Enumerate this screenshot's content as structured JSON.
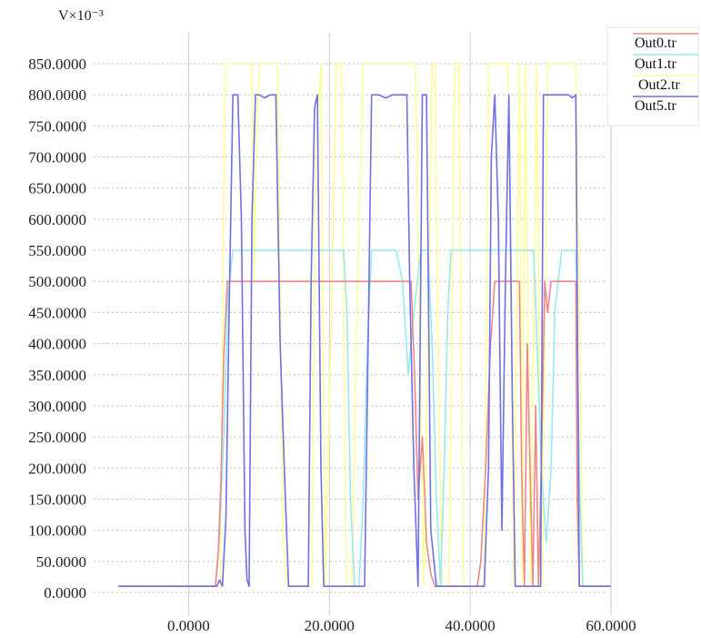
{
  "chart_data": {
    "type": "line",
    "title": "",
    "xlabel": "",
    "ylabel": "",
    "y_unit": "V×10⁻³",
    "xlim": [
      -10,
      60
    ],
    "ylim": [
      0,
      850
    ],
    "x_ticks": [
      0,
      20,
      40,
      60
    ],
    "x_tick_labels": [
      "0.0000",
      "20.0000",
      "40.0000",
      "60.0000"
    ],
    "y_ticks": [
      0,
      50,
      100,
      150,
      200,
      250,
      300,
      350,
      400,
      450,
      500,
      550,
      600,
      650,
      700,
      750,
      800,
      850
    ],
    "y_tick_labels": [
      "0.0000",
      "50.0000",
      "100.0000",
      "150.0000",
      "200.0000",
      "250.0000",
      "300.0000",
      "350.0000",
      "400.0000",
      "450.0000",
      "500.0000",
      "550.0000",
      "600.0000",
      "650.0000",
      "700.0000",
      "750.0000",
      "800.0000",
      "850.0000"
    ],
    "grid": {
      "horizontal": true,
      "vertical": true
    },
    "legend_position": "top-right",
    "series": [
      {
        "name": "Out0.tr",
        "color": "#ee8888",
        "x": [
          -10,
          3.8,
          4.2,
          4.6,
          5,
          5.5,
          6,
          6.5,
          7.2,
          7.8,
          8.6,
          9.4,
          10,
          12,
          15,
          18,
          20,
          22,
          25,
          28,
          30,
          31,
          31.6,
          32.1,
          32.6,
          33.2,
          33.8,
          34.4,
          35,
          36,
          38,
          40,
          41,
          41.5,
          42.2,
          42.9,
          43.5,
          44.5,
          46,
          47,
          47.3,
          47.7,
          48.1,
          48.5,
          48.9,
          49.3,
          49.7,
          50.1,
          50.6,
          51,
          51.5,
          52.5,
          55,
          55.2,
          55.5,
          56,
          60
        ],
        "y": [
          10,
          10,
          60,
          180,
          380,
          500,
          500,
          500,
          500,
          500,
          500,
          500,
          500,
          500,
          500,
          500,
          500,
          500,
          500,
          500,
          500,
          500,
          500,
          350,
          150,
          250,
          80,
          30,
          10,
          10,
          10,
          10,
          10,
          50,
          200,
          400,
          500,
          500,
          500,
          500,
          200,
          10,
          400,
          200,
          10,
          300,
          10,
          200,
          500,
          450,
          500,
          500,
          500,
          150,
          10,
          10,
          10
        ]
      },
      {
        "name": "Out1.tr",
        "color": "#99e8ee",
        "x": [
          -10,
          3.8,
          4.4,
          5,
          5.6,
          6.3,
          7,
          8,
          9,
          10,
          12,
          15,
          18,
          20,
          21,
          22,
          22.5,
          23,
          23.6,
          24.2,
          24.8,
          25.4,
          26,
          27,
          28,
          29.5,
          30.4,
          31.2,
          32,
          33,
          34,
          34.6,
          35.2,
          35.8,
          36.3,
          36.8,
          37.3,
          38,
          40,
          44,
          46,
          48,
          49,
          49.5,
          50.1,
          50.8,
          51.5,
          52,
          53,
          54,
          55,
          55.6,
          56,
          60
        ],
        "y": [
          10,
          10,
          90,
          250,
          480,
          550,
          550,
          550,
          550,
          550,
          550,
          550,
          550,
          550,
          550,
          550,
          450,
          150,
          10,
          10,
          150,
          400,
          550,
          550,
          550,
          550,
          500,
          350,
          450,
          550,
          550,
          400,
          150,
          10,
          200,
          450,
          550,
          550,
          550,
          550,
          550,
          550,
          550,
          400,
          200,
          80,
          200,
          450,
          550,
          550,
          550,
          150,
          10,
          10
        ]
      },
      {
        "name": "Out2.tr",
        "color": "#ffff99",
        "x": [
          -10,
          4.5,
          4.8,
          5.2,
          6,
          7,
          8,
          9,
          9.3,
          9.6,
          10,
          11,
          12,
          12.6,
          13,
          13.4,
          14,
          16,
          17.5,
          18,
          18.8,
          19.4,
          20,
          21,
          21.7,
          22.4,
          23.2,
          24,
          24.8,
          25.4,
          26,
          28,
          30,
          31,
          32.2,
          33.4,
          34.6,
          35,
          35.4,
          36,
          37,
          37.8,
          38.4,
          39,
          40,
          42,
          42.6,
          43.4,
          44,
          45.4,
          46.2,
          47,
          47.4,
          47.8,
          48.6,
          49.4,
          50.2,
          51,
          52,
          53,
          54,
          55,
          55.6,
          56,
          60
        ],
        "y": [
          10,
          10,
          400,
          850,
          850,
          850,
          850,
          850,
          500,
          700,
          850,
          850,
          850,
          850,
          500,
          100,
          10,
          10,
          10,
          700,
          850,
          10,
          300,
          850,
          850,
          10,
          10,
          500,
          850,
          850,
          850,
          850,
          850,
          850,
          850,
          10,
          850,
          850,
          400,
          10,
          10,
          850,
          850,
          10,
          10,
          10,
          850,
          850,
          850,
          850,
          10,
          850,
          10,
          850,
          10,
          850,
          10,
          850,
          850,
          850,
          850,
          850,
          400,
          10,
          10
        ]
      },
      {
        "name": "Out5.tr",
        "color": "#6f6fe6",
        "x": [
          -10,
          3.8,
          4,
          4.4,
          4.8,
          5.3,
          5.8,
          6.3,
          7,
          7.5,
          8,
          8.3,
          8.6,
          9,
          9.5,
          10,
          10.8,
          11.6,
          12.4,
          13,
          13.6,
          14.2,
          15,
          16,
          17,
          17.4,
          17.9,
          18.3,
          18.8,
          19.2,
          19.6,
          20.1,
          20.6,
          21.1,
          21.6,
          22,
          22.4,
          23,
          24,
          25,
          25.5,
          26,
          26.6,
          27,
          28,
          29,
          30.4,
          31,
          31.4,
          32,
          32.6,
          33.2,
          33.8,
          34.4,
          35.2,
          36,
          36.6,
          37,
          38,
          39,
          39.6,
          40,
          41,
          42,
          42.6,
          43,
          43.5,
          44,
          44.5,
          45,
          45.5,
          46,
          46.4,
          46.8,
          47.2,
          47.6,
          48,
          48.4,
          48.8,
          49.2,
          49.6,
          50,
          50.4,
          50.8,
          51.6,
          52.4,
          53.2,
          54,
          54.5,
          55,
          55.5,
          56,
          60
        ],
        "y": [
          10,
          10,
          10,
          20,
          10,
          120,
          480,
          800,
          800,
          600,
          100,
          20,
          10,
          600,
          800,
          800,
          795,
          800,
          800,
          400,
          200,
          10,
          10,
          10,
          10,
          500,
          780,
          800,
          200,
          10,
          10,
          10,
          10,
          10,
          10,
          10,
          10,
          10,
          10,
          10,
          400,
          800,
          800,
          800,
          795,
          800,
          800,
          800,
          500,
          200,
          10,
          800,
          800,
          100,
          10,
          10,
          10,
          10,
          10,
          10,
          10,
          10,
          10,
          10,
          200,
          700,
          800,
          600,
          100,
          500,
          800,
          300,
          10,
          10,
          10,
          10,
          10,
          10,
          10,
          10,
          10,
          10,
          800,
          800,
          800,
          800,
          800,
          800,
          795,
          800,
          10,
          10,
          10
        ]
      }
    ]
  }
}
